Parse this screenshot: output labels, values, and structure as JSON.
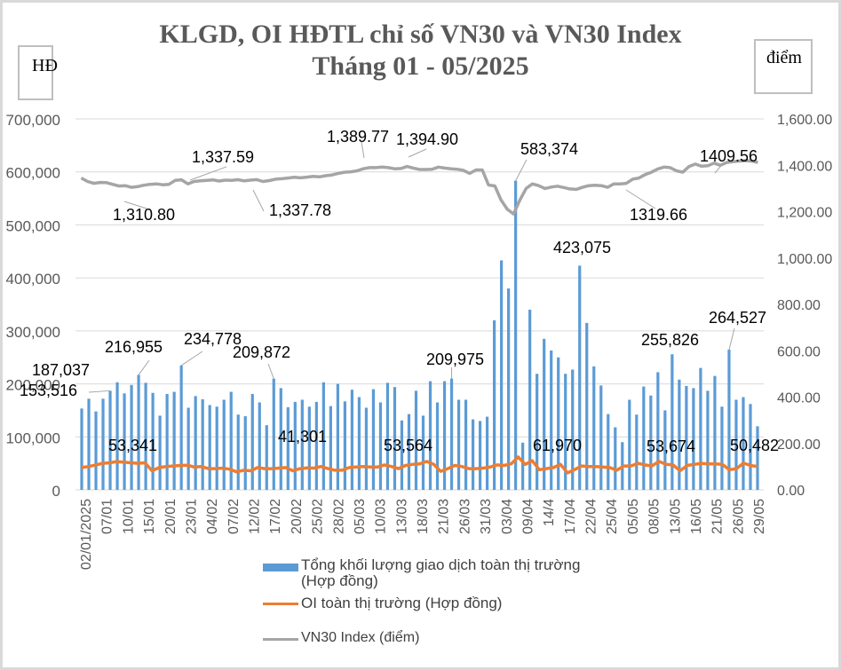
{
  "chart_data": {
    "type": "bar",
    "title": "KLGD, OI HĐTL chỉ số VN30 và VN30 Index",
    "subtitle": "Tháng 01 - 05/2025",
    "left_axis_unit": "HĐ",
    "right_axis_unit": "điểm",
    "y_left": {
      "range": [
        0,
        700000
      ],
      "ticks": [
        "0",
        "100,000",
        "200,000",
        "300,000",
        "400,000",
        "500,000",
        "600,000",
        "700,000"
      ]
    },
    "y_right": {
      "range": [
        0,
        1600
      ],
      "ticks": [
        "0.00",
        "200.00",
        "400.00",
        "600.00",
        "800.00",
        "1,000.00",
        "1,200.00",
        "1,400.00",
        "1,600.00"
      ]
    },
    "grid": true,
    "legend_position": "bottom",
    "x_tick_labels": [
      "02/01/2025",
      "07/01",
      "10/01",
      "15/01",
      "20/01",
      "23/01",
      "04/02",
      "07/02",
      "12/02",
      "17/02",
      "20/02",
      "25/02",
      "28/02",
      "05/03",
      "10/03",
      "13/03",
      "18/03",
      "21/03",
      "26/03",
      "31/03",
      "03/04",
      "09/04",
      "14/4",
      "17/04",
      "22/04",
      "25/04",
      "05/05",
      "08/05",
      "13/05",
      "16/05",
      "21/05",
      "26/05",
      "29/05"
    ],
    "series": [
      {
        "name": "Tổng khối lượng giao dịch toàn thị trường (Hợp đồng)",
        "type": "bar",
        "axis": "left",
        "color": "#5b9bd5",
        "values": [
          153516,
          172000,
          148000,
          172000,
          187037,
          203000,
          182000,
          198000,
          216955,
          202000,
          183000,
          140000,
          181000,
          185000,
          234778,
          155000,
          177000,
          171000,
          160000,
          157000,
          170000,
          185000,
          142000,
          139000,
          181000,
          165000,
          122000,
          209872,
          192000,
          156000,
          166000,
          170000,
          157000,
          166000,
          203000,
          158000,
          200000,
          167000,
          189000,
          175000,
          155000,
          190000,
          165000,
          202000,
          194000,
          131000,
          143000,
          187000,
          140000,
          205000,
          165000,
          205000,
          209975,
          170000,
          170000,
          133000,
          130000,
          138000,
          320000,
          433000,
          380000,
          583374,
          89000,
          340000,
          219000,
          285000,
          263000,
          250000,
          219000,
          227000,
          423075,
          315000,
          233000,
          197000,
          143000,
          118000,
          90000,
          170000,
          142000,
          195000,
          178000,
          222000,
          150000,
          255826,
          208000,
          196000,
          192000,
          230000,
          187000,
          215000,
          157000,
          264527,
          170000,
          175000,
          162000,
          120000
        ],
        "data_labels": [
          {
            "index": 0,
            "text": "153,516"
          },
          {
            "index": 4,
            "text": "187,037"
          },
          {
            "index": 8,
            "text": "216,955"
          },
          {
            "index": 14,
            "text": "234,778"
          },
          {
            "index": 27,
            "text": "209,872"
          },
          {
            "index": 52,
            "text": "209,975"
          },
          {
            "index": 61,
            "text": "583,374"
          },
          {
            "index": 70,
            "text": "423,075"
          },
          {
            "index": 83,
            "text": "255,826"
          },
          {
            "index": 91,
            "text": "264,527"
          }
        ]
      },
      {
        "name": "OI toàn thị trường (Hợp đồng)",
        "type": "line",
        "axis": "left",
        "color": "#ed7d31",
        "values": [
          42000,
          44000,
          47000,
          50000,
          51000,
          53341,
          52000,
          51000,
          50000,
          51000,
          36000,
          42000,
          44000,
          45000,
          46000,
          46500,
          43000,
          44000,
          40000,
          40000,
          41000,
          39000,
          34000,
          37000,
          36000,
          42000,
          40000,
          40000,
          41000,
          42000,
          36000,
          40000,
          41301,
          41000,
          44000,
          40000,
          37000,
          37000,
          42000,
          43000,
          44000,
          43000,
          43000,
          47000,
          44000,
          40000,
          46000,
          48000,
          49000,
          53564,
          48000,
          35000,
          40000,
          46000,
          44000,
          40000,
          40000,
          41000,
          43000,
          47000,
          46000,
          49000,
          61970,
          48000,
          55000,
          38000,
          40000,
          42000,
          48000,
          32000,
          38000,
          45000,
          44000,
          44000,
          43000,
          42000,
          37000,
          45000,
          45000,
          50000,
          47000,
          45000,
          53674,
          48000,
          47000,
          36000,
          46000,
          48000,
          50000,
          49000,
          49000,
          48000,
          38000,
          40000,
          50482,
          46000,
          44000
        ]
      },
      {
        "name": "VN30 Index (điểm)",
        "type": "line",
        "axis": "right",
        "color": "#a5a5a5",
        "values": [
          1345,
          1330,
          1322,
          1326,
          1325,
          1318,
          1310.8,
          1312,
          1305,
          1308,
          1314,
          1318,
          1320,
          1316,
          1318,
          1335,
          1337.59,
          1320,
          1330,
          1333,
          1335,
          1337,
          1332,
          1336,
          1335,
          1337.78,
          1333,
          1336,
          1338,
          1330,
          1334,
          1340,
          1342,
          1345,
          1348,
          1346,
          1349,
          1352,
          1350,
          1355,
          1358,
          1365,
          1370,
          1372,
          1376,
          1385,
          1389.77,
          1390,
          1392,
          1390,
          1385,
          1386,
          1394.9,
          1388,
          1382,
          1382,
          1383,
          1392,
          1388,
          1385,
          1383,
          1378,
          1365,
          1380,
          1380,
          1315,
          1311,
          1250,
          1210,
          1190,
          1250,
          1300,
          1320,
          1312,
          1300,
          1306,
          1310,
          1304,
          1298,
          1296,
          1305,
          1312,
          1314,
          1312,
          1305,
          1319.66,
          1320,
          1322,
          1340,
          1345,
          1360,
          1370,
          1384,
          1392,
          1390,
          1376,
          1370,
          1395,
          1405,
          1396,
          1398,
          1409.56,
          1400,
          1412,
          1416,
          1418,
          1420,
          1418,
          1412
        ],
        "data_labels": [
          {
            "text": "1,310.80"
          },
          {
            "text": "1,337.59"
          },
          {
            "text": "1,337.78"
          },
          {
            "text": "1,389.77"
          },
          {
            "text": "1,394.90"
          },
          {
            "text": "1319.66"
          },
          {
            "text": "1409.56"
          }
        ]
      }
    ],
    "oi_labels": [
      {
        "text": "53,341"
      },
      {
        "text": "41,301"
      },
      {
        "text": "53,564"
      },
      {
        "text": "61,970"
      },
      {
        "text": "53,674"
      },
      {
        "text": "50,482"
      }
    ]
  },
  "legend": {
    "bar_line1": "Tổng khối lượng giao dịch toàn thị trường",
    "bar_line2": "(Hợp đồng)",
    "oi": "OI toàn thị trường (Hợp đồng)",
    "vn30": "VN30 Index (điểm)"
  }
}
